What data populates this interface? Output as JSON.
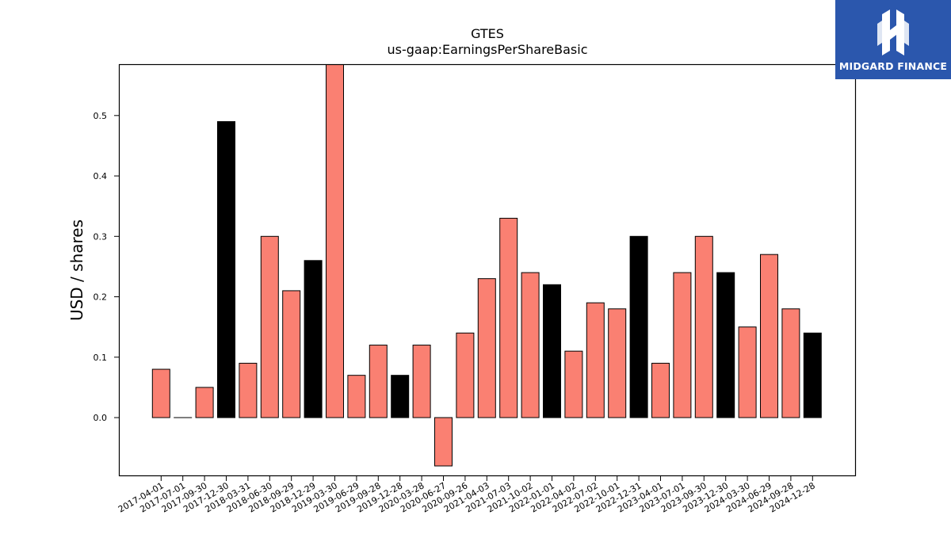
{
  "brand": {
    "name": "MIDGARD FINANCE",
    "background": "#2b57ad",
    "logo_icon": "midgard-logo-icon"
  },
  "chart_data": {
    "type": "bar",
    "title": "GTES",
    "subtitle": "us-gaap:EarningsPerShareBasic",
    "xlabel": "",
    "ylabel": "USD / shares",
    "ylim": [
      -0.097,
      0.585
    ],
    "yticks": [
      0.0,
      0.1,
      0.2,
      0.3,
      0.4,
      0.5
    ],
    "grid": false,
    "colors": {
      "quarter": "#fa8072",
      "year_end": "#000000"
    },
    "categories": [
      "2017-04-01",
      "2017-07-01",
      "2017-09-30",
      "2017-12-30",
      "2018-03-31",
      "2018-06-30",
      "2018-09-29",
      "2018-12-29",
      "2019-03-30",
      "2019-06-29",
      "2019-09-28",
      "2019-12-28",
      "2020-03-28",
      "2020-06-27",
      "2020-09-26",
      "2021-04-03",
      "2021-07-03",
      "2021-10-02",
      "2022-01-01",
      "2022-04-02",
      "2022-07-02",
      "2022-10-01",
      "2022-12-31",
      "2023-04-01",
      "2023-07-01",
      "2023-09-30",
      "2023-12-30",
      "2024-03-30",
      "2024-06-29",
      "2024-09-28",
      "2024-12-28"
    ],
    "values": [
      0.08,
      0.0,
      0.05,
      0.49,
      0.09,
      0.3,
      0.21,
      0.26,
      0.59,
      0.07,
      0.12,
      0.07,
      0.12,
      -0.08,
      0.14,
      0.23,
      0.33,
      0.24,
      0.22,
      0.11,
      0.19,
      0.18,
      0.3,
      0.09,
      0.24,
      0.3,
      0.24,
      0.15,
      0.27,
      0.18,
      0.14
    ],
    "bar_kind": [
      "quarter",
      "quarter",
      "quarter",
      "year_end",
      "quarter",
      "quarter",
      "quarter",
      "year_end",
      "quarter",
      "quarter",
      "quarter",
      "year_end",
      "quarter",
      "quarter",
      "quarter",
      "quarter",
      "quarter",
      "quarter",
      "year_end",
      "quarter",
      "quarter",
      "quarter",
      "year_end",
      "quarter",
      "quarter",
      "quarter",
      "year_end",
      "quarter",
      "quarter",
      "quarter",
      "year_end"
    ]
  }
}
